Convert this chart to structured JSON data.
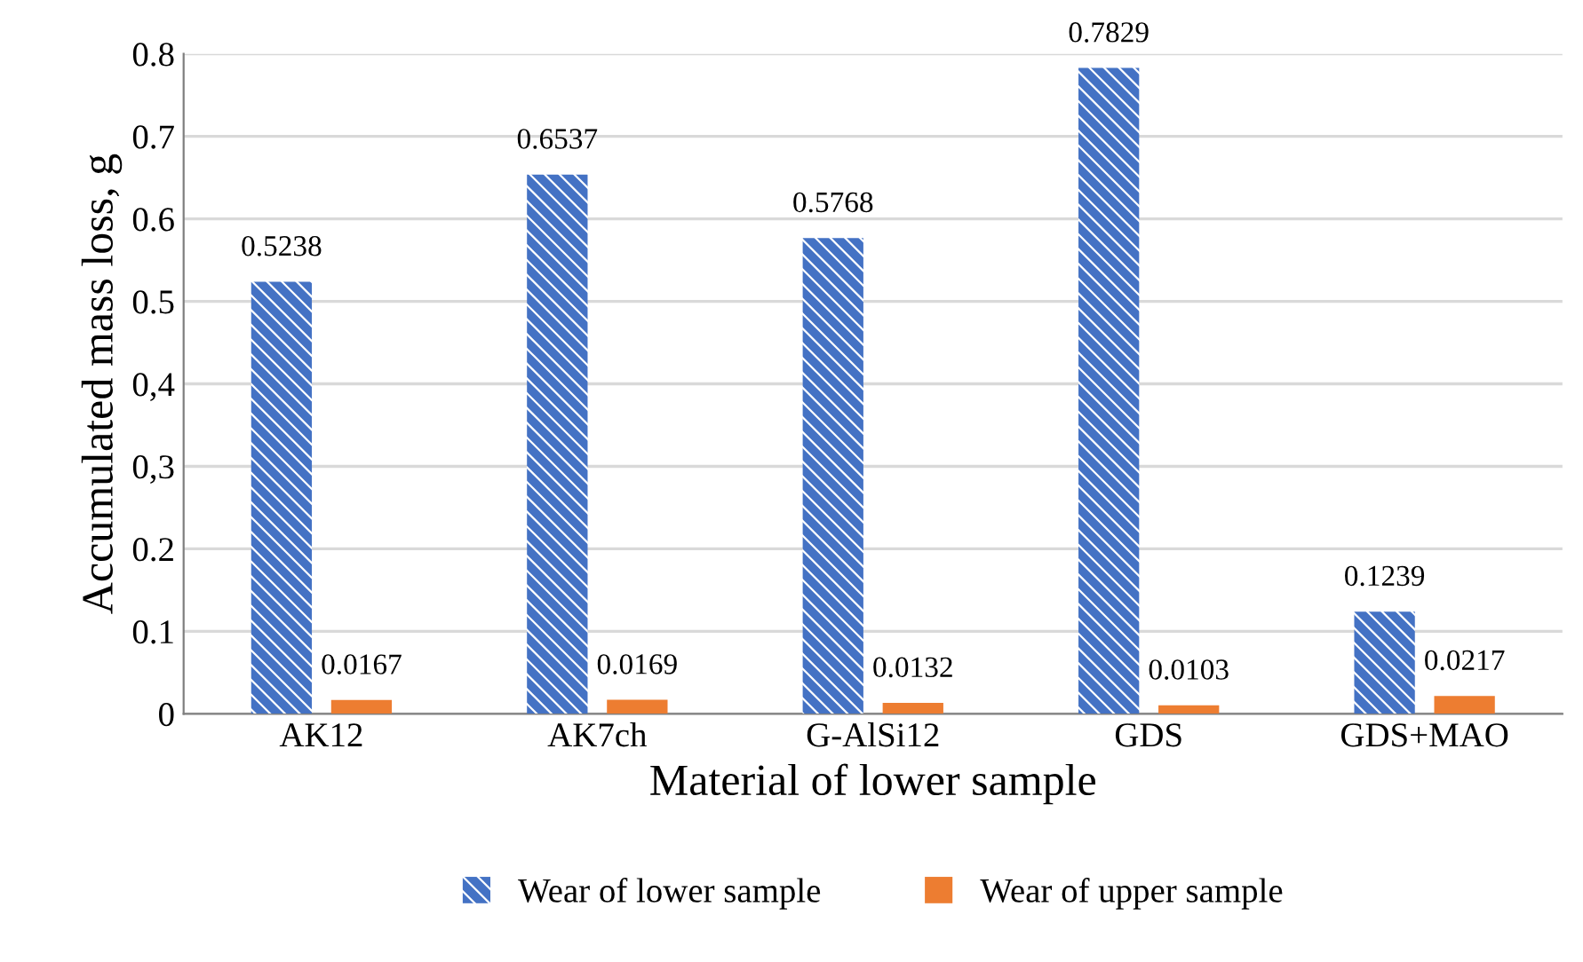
{
  "chart_data": {
    "type": "bar",
    "xlabel": "Material of lower sample",
    "ylabel": "Accumulated mass loss, g",
    "categories": [
      "AK12",
      "AK7ch",
      "G-AlSi12",
      "GDS",
      "GDS+MAO"
    ],
    "series": [
      {
        "name": "Wear of lower sample",
        "color": "#4472c4",
        "values": [
          0.5238,
          0.6537,
          0.5768,
          0.7829,
          0.1239
        ]
      },
      {
        "name": "Wear of upper sample",
        "color": "#ed7d31",
        "values": [
          0.0167,
          0.0169,
          0.0132,
          0.0103,
          0.0217
        ]
      }
    ],
    "ylim": [
      0,
      0.8
    ],
    "yticks": [
      0,
      0.1,
      0.2,
      {
        "value": 0.3,
        "label": "0,3"
      },
      {
        "value": 0.4,
        "label": "0,4"
      },
      0.5,
      0.6,
      0.7,
      0.8
    ],
    "grid": "y",
    "legend": "bottom",
    "data_labels": true
  }
}
